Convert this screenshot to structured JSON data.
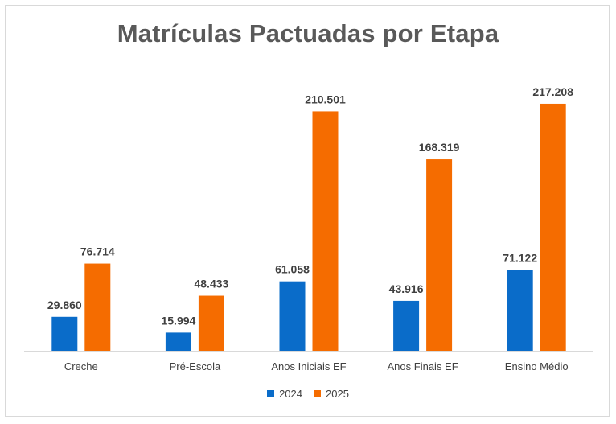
{
  "chart_data": {
    "type": "bar",
    "title": "Matrículas Pactuadas por Etapa",
    "categories": [
      "Creche",
      "Pré-Escola",
      "Anos Iniciais EF",
      "Anos Finais EF",
      "Ensino Médio"
    ],
    "series": [
      {
        "name": "2024",
        "color": "#0a6cc9",
        "values": [
          29860,
          15994,
          61058,
          43916,
          71122
        ],
        "labels": [
          "29.860",
          "15.994",
          "61.058",
          "43.916",
          "71.122"
        ]
      },
      {
        "name": "2025",
        "color": "#f56c00",
        "values": [
          76714,
          48433,
          210501,
          168319,
          217208
        ],
        "labels": [
          "76.714",
          "48.433",
          "210.501",
          "168.319",
          "217.208"
        ]
      }
    ],
    "ylim": [
      0,
      220000
    ],
    "grid": false,
    "legend_position": "bottom"
  }
}
